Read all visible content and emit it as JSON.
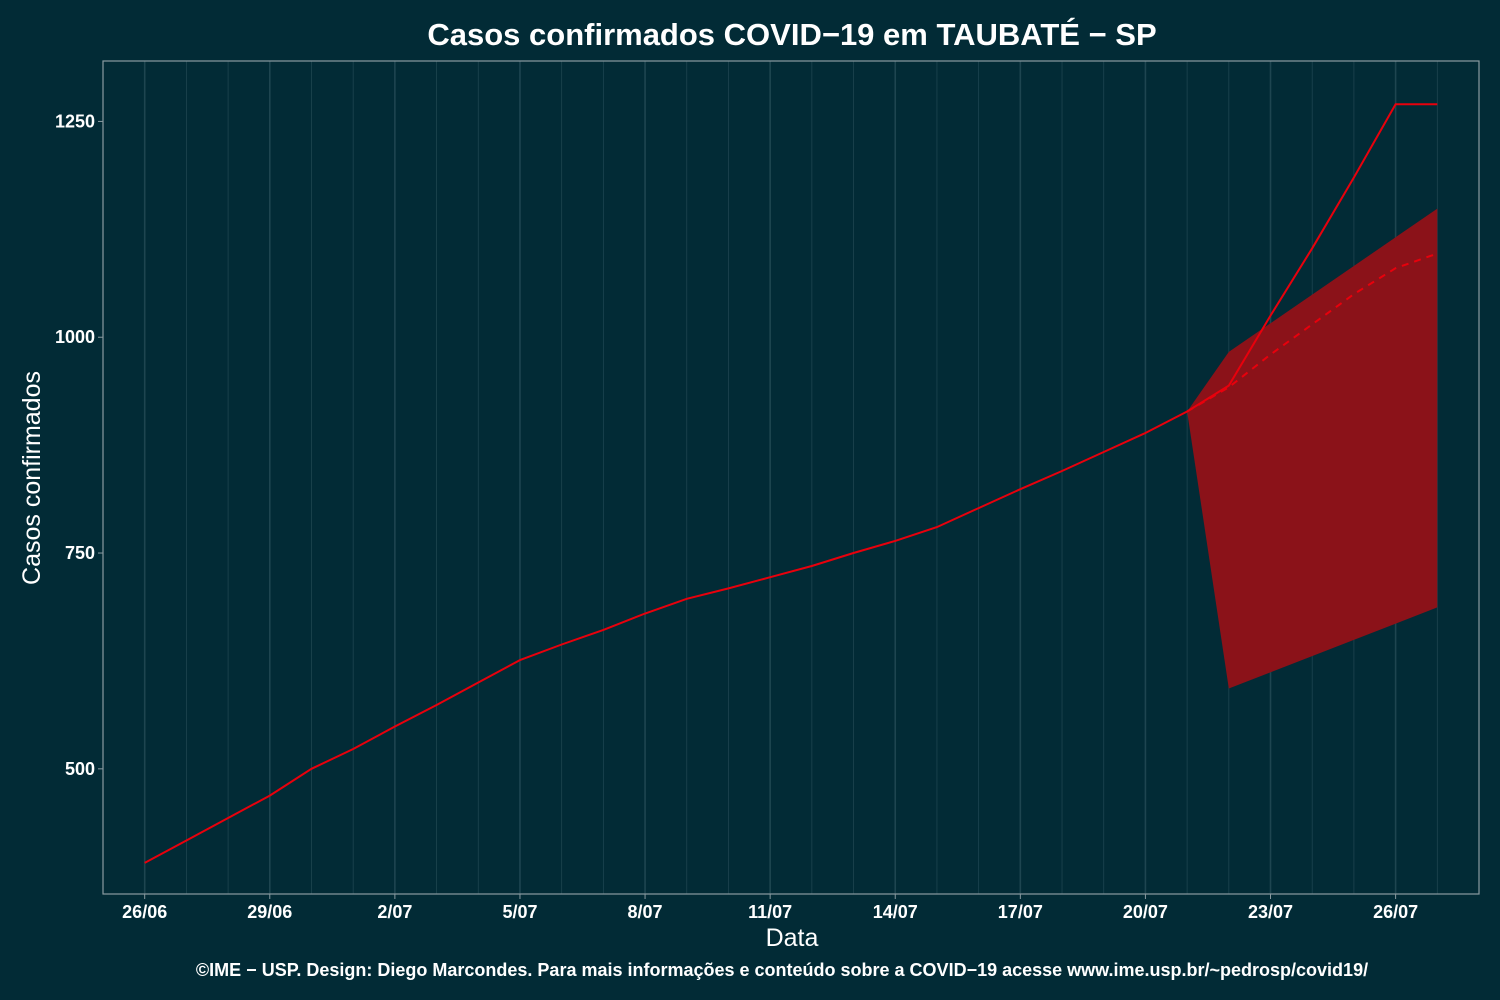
{
  "chart_data": {
    "type": "line",
    "title": "Casos confirmados COVID−19 em TAUBATÉ − SP",
    "xlabel": "Data",
    "ylabel": "Casos confirmados",
    "caption": "©IME − USP. Design: Diego Marcondes. Para mais informações e conteúdo sobre a COVID−19 acesse www.ime.usp.br/~pedrosp/covid19/",
    "x_start": "2020-06-26",
    "x_end": "2020-07-27",
    "xlim": [
      "2020-06-25",
      "2020-07-28"
    ],
    "ylim": [
      355,
      1320
    ],
    "x_ticks": [
      "26/06",
      "29/06",
      "2/07",
      "5/07",
      "8/07",
      "11/07",
      "14/07",
      "17/07",
      "20/07",
      "23/07",
      "26/07"
    ],
    "y_ticks": [
      500,
      750,
      1000,
      1250
    ],
    "grid": true,
    "colors": {
      "background": "#022b36",
      "line": "#e8000c",
      "band": "#8b1219",
      "grid": "#1e4550",
      "frame": "#8a9aa0"
    },
    "series": [
      {
        "style": "solid",
        "x": [
          "2020-06-26",
          "2020-06-27",
          "2020-06-28",
          "2020-06-29",
          "2020-06-30",
          "2020-07-01",
          "2020-07-02",
          "2020-07-03",
          "2020-07-04",
          "2020-07-05",
          "2020-07-06",
          "2020-07-07",
          "2020-07-08",
          "2020-07-09",
          "2020-07-10",
          "2020-07-11",
          "2020-07-12",
          "2020-07-13",
          "2020-07-14",
          "2020-07-15",
          "2020-07-16",
          "2020-07-17",
          "2020-07-18",
          "2020-07-19",
          "2020-07-20",
          "2020-07-21",
          "2020-07-22",
          "2020-07-23",
          "2020-07-24",
          "2020-07-25",
          "2020-07-26",
          "2020-07-27"
        ],
        "values": [
          391,
          417,
          443,
          469,
          500,
          523,
          549,
          574,
          600,
          626,
          644,
          661,
          680,
          697,
          709,
          722,
          735,
          750,
          764,
          780,
          802,
          824,
          845,
          867,
          889,
          914,
          944,
          1025,
          1103,
          1185,
          1270,
          1270
        ]
      },
      {
        "style": "dashed",
        "x": [
          "2020-07-21",
          "2020-07-22",
          "2020-07-23",
          "2020-07-24",
          "2020-07-25",
          "2020-07-26",
          "2020-07-27"
        ],
        "values": [
          914,
          942,
          980,
          1015,
          1050,
          1080,
          1097
        ]
      }
    ],
    "band": {
      "x": [
        "2020-07-21",
        "2020-07-22",
        "2020-07-27"
      ],
      "lower": [
        914,
        593,
        687
      ],
      "upper": [
        914,
        983,
        1149
      ]
    }
  }
}
